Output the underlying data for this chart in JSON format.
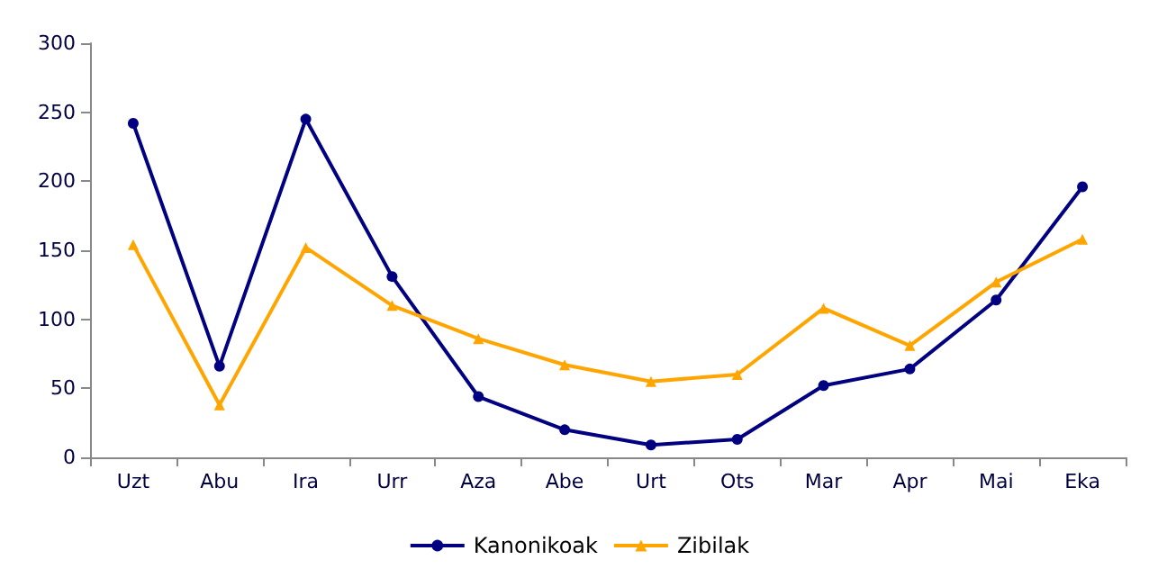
{
  "chart_data": {
    "type": "line",
    "categories": [
      "Uzt",
      "Abu",
      "Ira",
      "Urr",
      "Aza",
      "Abe",
      "Urt",
      "Ots",
      "Mar",
      "Apr",
      "Mai",
      "Eka"
    ],
    "series": [
      {
        "name": "Kanonikoak",
        "color": "#000080",
        "marker": "circle",
        "values": [
          242,
          66,
          245,
          131,
          44,
          20,
          9,
          13,
          52,
          64,
          114,
          196
        ]
      },
      {
        "name": "Zibilak",
        "color": "#ffa500",
        "marker": "triangle",
        "values": [
          154,
          38,
          152,
          110,
          86,
          67,
          55,
          60,
          108,
          81,
          127,
          158
        ]
      }
    ],
    "ylim": [
      0,
      300
    ],
    "yticks": [
      0,
      50,
      100,
      150,
      200,
      250,
      300
    ],
    "grid": false,
    "legend": "bottom"
  }
}
